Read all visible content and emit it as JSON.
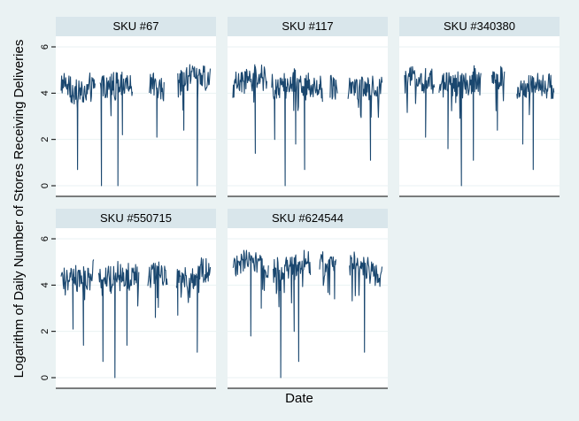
{
  "chart_data": {
    "type": "line",
    "layout": "small-multiples",
    "xlabel": "Date",
    "ylabel": "Logarithm of Daily Number of Stores Receiving Deliveries",
    "ylim": [
      0,
      6
    ],
    "yticks": [
      0,
      2,
      4,
      6
    ],
    "grid": true,
    "line_color": "#1a476f",
    "panels": [
      {
        "name": "SKU #67",
        "segments": [
          [
            0.0,
            0.23
          ],
          [
            0.26,
            0.48
          ],
          [
            0.59,
            0.69
          ],
          [
            0.78,
            1.0
          ]
        ],
        "base": 4.4,
        "amp": 0.55,
        "dips": [
          [
            0.11,
            0.7
          ],
          [
            0.27,
            0.0
          ],
          [
            0.38,
            0.0
          ],
          [
            0.41,
            2.2
          ],
          [
            0.64,
            2.1
          ],
          [
            0.82,
            2.4
          ],
          [
            0.91,
            0.0
          ]
        ]
      },
      {
        "name": "SKU #117",
        "segments": [
          [
            0.0,
            0.23
          ],
          [
            0.26,
            0.6
          ],
          [
            0.65,
            0.7
          ],
          [
            0.77,
            1.0
          ]
        ],
        "base": 4.3,
        "amp": 0.55,
        "dips": [
          [
            0.15,
            1.4
          ],
          [
            0.28,
            2.0
          ],
          [
            0.35,
            0.0
          ],
          [
            0.42,
            1.8
          ],
          [
            0.48,
            0.7
          ],
          [
            0.71,
            2.2
          ],
          [
            0.92,
            1.1
          ]
        ]
      },
      {
        "name": "SKU #340380",
        "segments": [
          [
            0.0,
            0.2
          ],
          [
            0.23,
            0.51
          ],
          [
            0.58,
            0.67
          ],
          [
            0.75,
            1.0
          ]
        ],
        "base": 4.4,
        "amp": 0.55,
        "dips": [
          [
            0.14,
            2.1
          ],
          [
            0.29,
            1.6
          ],
          [
            0.38,
            0.0
          ],
          [
            0.46,
            1.1
          ],
          [
            0.62,
            2.4
          ],
          [
            0.79,
            1.8
          ],
          [
            0.86,
            0.7
          ]
        ]
      },
      {
        "name": "SKU #550715",
        "segments": [
          [
            0.0,
            0.22
          ],
          [
            0.25,
            0.52
          ],
          [
            0.58,
            0.71
          ],
          [
            0.77,
            1.0
          ]
        ],
        "base": 4.2,
        "amp": 0.6,
        "dips": [
          [
            0.08,
            2.1
          ],
          [
            0.15,
            1.4
          ],
          [
            0.28,
            0.7
          ],
          [
            0.36,
            0.0
          ],
          [
            0.44,
            1.4
          ],
          [
            0.63,
            2.6
          ],
          [
            0.78,
            2.7
          ],
          [
            0.91,
            1.1
          ]
        ]
      },
      {
        "name": "SKU #624544",
        "segments": [
          [
            0.0,
            0.24
          ],
          [
            0.27,
            0.52
          ],
          [
            0.58,
            0.69
          ],
          [
            0.78,
            1.0
          ]
        ],
        "base": 4.8,
        "amp": 0.5,
        "dips": [
          [
            0.12,
            1.8
          ],
          [
            0.19,
            3.0
          ],
          [
            0.32,
            0.0
          ],
          [
            0.41,
            2.0
          ],
          [
            0.44,
            0.7
          ],
          [
            0.68,
            3.4
          ],
          [
            0.82,
            4.0
          ],
          [
            0.88,
            1.1
          ]
        ]
      }
    ]
  }
}
